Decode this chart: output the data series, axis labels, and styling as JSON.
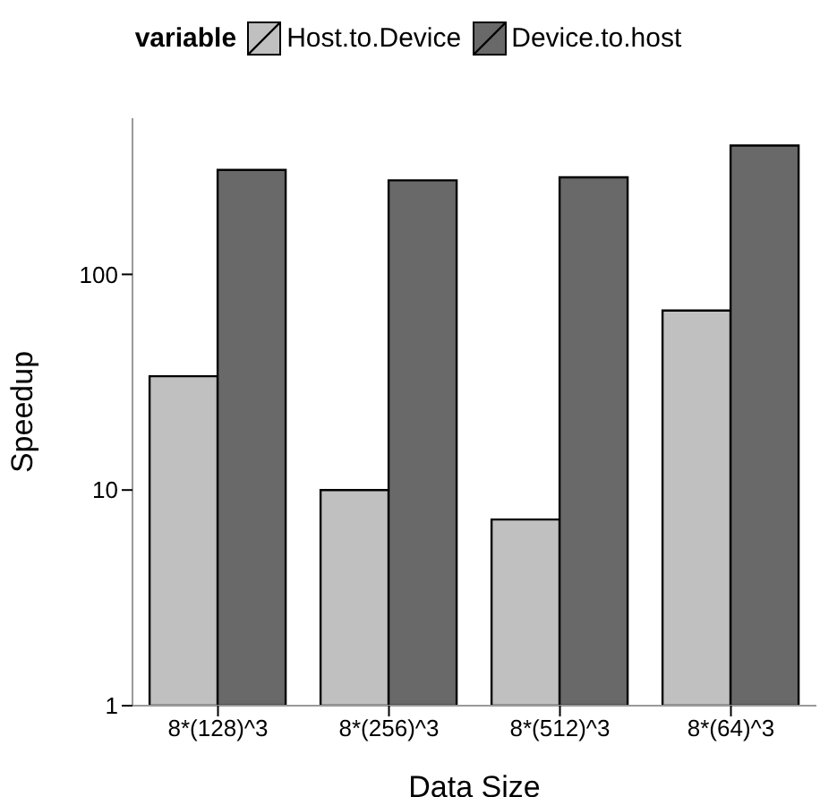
{
  "chart_data": {
    "type": "bar",
    "xlabel": "Data Size",
    "ylabel": "Speedup",
    "legend_title": "variable",
    "legend": "top",
    "log": "y",
    "grid": false,
    "categories": [
      "8*(128)^3",
      "8*(256)^3",
      "8*(512)^3",
      "8*(64)^3"
    ],
    "series": [
      {
        "name": "Host.to.Device",
        "color": "#c0c0c0",
        "values": [
          33.7,
          10,
          7.3,
          68
        ]
      },
      {
        "name": "Device.to.host",
        "color": "#696969",
        "values": [
          305,
          273,
          282,
          396
        ]
      }
    ],
    "ylim": [
      1,
      530
    ],
    "yticks": [
      1,
      10,
      100
    ]
  }
}
